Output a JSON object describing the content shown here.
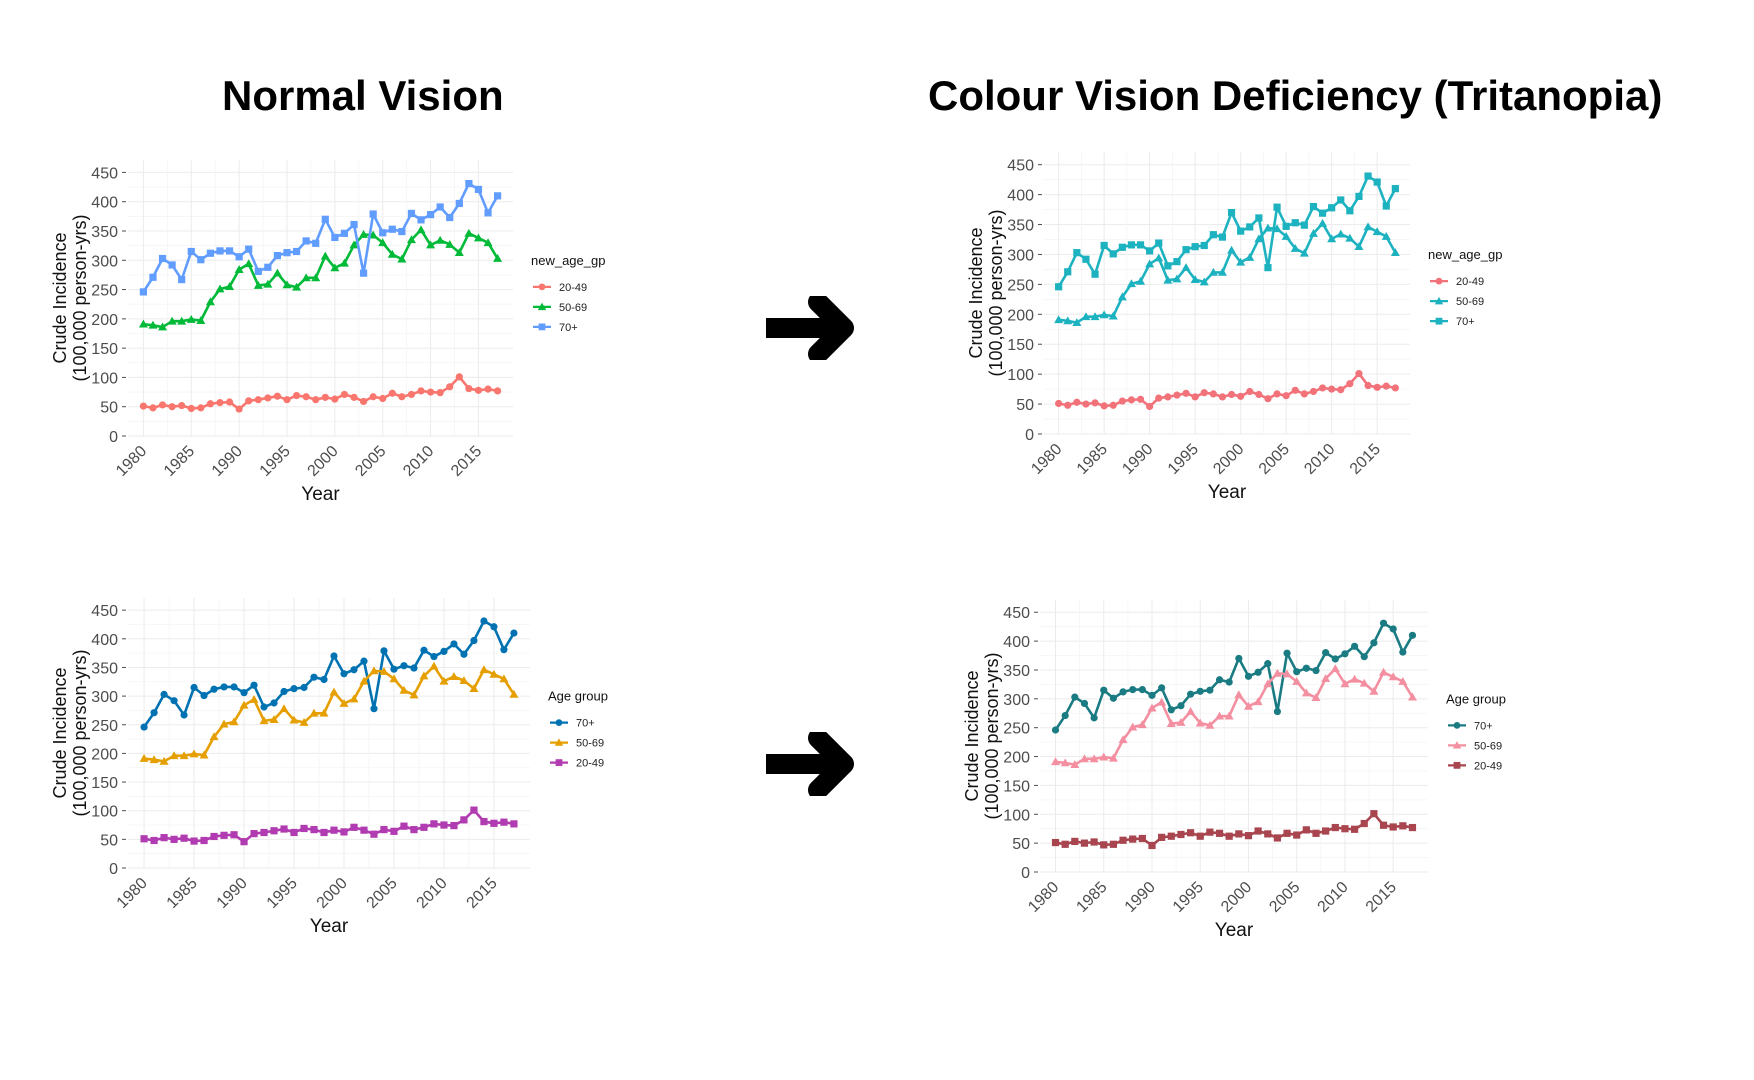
{
  "headings": {
    "left": "Normal Vision",
    "right": "Colour Vision Deficiency (Tritanopia)"
  },
  "chart_data": [
    {
      "type": "line",
      "panel": "top-left",
      "xlabel": "Year",
      "ylabel": [
        "Crude Incidence",
        "(100,000 person-yrs)"
      ],
      "xlim": [
        1980,
        2017
      ],
      "ylim": [
        0,
        450
      ],
      "xticks": [
        1980,
        1985,
        1990,
        1995,
        2000,
        2005,
        2010,
        2015
      ],
      "yticks": [
        0,
        50,
        100,
        150,
        200,
        250,
        300,
        350,
        400,
        450
      ],
      "grid": true,
      "legend_title": "new_age_gp",
      "legend_position": "right",
      "x": [
        1980,
        1981,
        1982,
        1983,
        1984,
        1985,
        1986,
        1987,
        1988,
        1989,
        1990,
        1991,
        1992,
        1993,
        1994,
        1995,
        1996,
        1997,
        1998,
        1999,
        2000,
        2001,
        2002,
        2003,
        2004,
        2005,
        2006,
        2007,
        2008,
        2009,
        2010,
        2011,
        2012,
        2013,
        2014,
        2015,
        2016,
        2017
      ],
      "series": [
        {
          "name": "20-49",
          "color": "#F8766D",
          "marker": "circle",
          "values": [
            51,
            48,
            53,
            50,
            52,
            47,
            48,
            55,
            57,
            58,
            46,
            60,
            62,
            65,
            68,
            62,
            69,
            67,
            62,
            66,
            63,
            71,
            66,
            59,
            67,
            64,
            73,
            67,
            71,
            77,
            75,
            74,
            84,
            101,
            81,
            78,
            80,
            77
          ]
        },
        {
          "name": "50-69",
          "color": "#00BA38",
          "marker": "triangle",
          "values": [
            191,
            189,
            186,
            196,
            196,
            199,
            197,
            229,
            251,
            255,
            284,
            294,
            257,
            259,
            278,
            258,
            254,
            270,
            270,
            307,
            287,
            295,
            326,
            344,
            343,
            330,
            310,
            302,
            335,
            352,
            326,
            334,
            327,
            313,
            346,
            338,
            330,
            303
          ]
        },
        {
          "name": "70+",
          "color": "#619CFF",
          "marker": "square",
          "values": [
            246,
            271,
            303,
            292,
            267,
            315,
            301,
            312,
            316,
            316,
            306,
            319,
            281,
            288,
            308,
            313,
            315,
            333,
            329,
            370,
            339,
            346,
            361,
            278,
            379,
            347,
            353,
            349,
            380,
            369,
            378,
            391,
            373,
            397,
            431,
            421,
            381,
            410
          ]
        }
      ]
    },
    {
      "type": "line",
      "panel": "top-right",
      "xlabel": "Year",
      "ylabel": [
        "Crude Incidence",
        "(100,000 person-yrs)"
      ],
      "xlim": [
        1980,
        2017
      ],
      "ylim": [
        0,
        450
      ],
      "xticks": [
        1980,
        1985,
        1990,
        1995,
        2000,
        2005,
        2010,
        2015
      ],
      "yticks": [
        0,
        50,
        100,
        150,
        200,
        250,
        300,
        350,
        400,
        450
      ],
      "grid": true,
      "legend_title": "new_age_gp",
      "legend_position": "right",
      "x": [
        1980,
        1981,
        1982,
        1983,
        1984,
        1985,
        1986,
        1987,
        1988,
        1989,
        1990,
        1991,
        1992,
        1993,
        1994,
        1995,
        1996,
        1997,
        1998,
        1999,
        2000,
        2001,
        2002,
        2003,
        2004,
        2005,
        2006,
        2007,
        2008,
        2009,
        2010,
        2011,
        2012,
        2013,
        2014,
        2015,
        2016,
        2017
      ],
      "series": [
        {
          "name": "20-49",
          "color": "#F2727A",
          "marker": "circle",
          "values": [
            51,
            48,
            53,
            50,
            52,
            47,
            48,
            55,
            57,
            58,
            46,
            60,
            62,
            65,
            68,
            62,
            69,
            67,
            62,
            66,
            63,
            71,
            66,
            59,
            67,
            64,
            73,
            67,
            71,
            77,
            75,
            74,
            84,
            101,
            81,
            78,
            80,
            77
          ]
        },
        {
          "name": "50-69",
          "color": "#1DB2C0",
          "marker": "triangle",
          "values": [
            191,
            189,
            186,
            196,
            196,
            199,
            197,
            229,
            251,
            255,
            284,
            294,
            257,
            259,
            278,
            258,
            254,
            270,
            270,
            307,
            287,
            295,
            326,
            344,
            343,
            330,
            310,
            302,
            335,
            352,
            326,
            334,
            327,
            313,
            346,
            338,
            330,
            303
          ]
        },
        {
          "name": "70+",
          "color": "#1DB2C0",
          "marker": "square",
          "values": [
            246,
            271,
            303,
            292,
            267,
            315,
            301,
            312,
            316,
            316,
            306,
            319,
            281,
            288,
            308,
            313,
            315,
            333,
            329,
            370,
            339,
            346,
            361,
            278,
            379,
            347,
            353,
            349,
            380,
            369,
            378,
            391,
            373,
            397,
            431,
            421,
            381,
            410
          ]
        }
      ]
    },
    {
      "type": "line",
      "panel": "bottom-left",
      "xlabel": "Year",
      "ylabel": [
        "Crude Incidence",
        "(100,000 person-yrs)"
      ],
      "xlim": [
        1980,
        2017
      ],
      "ylim": [
        0,
        450
      ],
      "xticks": [
        1980,
        1985,
        1990,
        1995,
        2000,
        2005,
        2010,
        2015
      ],
      "yticks": [
        0,
        50,
        100,
        150,
        200,
        250,
        300,
        350,
        400,
        450
      ],
      "grid": true,
      "legend_title": "Age group",
      "legend_position": "right",
      "x": [
        1980,
        1981,
        1982,
        1983,
        1984,
        1985,
        1986,
        1987,
        1988,
        1989,
        1990,
        1991,
        1992,
        1993,
        1994,
        1995,
        1996,
        1997,
        1998,
        1999,
        2000,
        2001,
        2002,
        2003,
        2004,
        2005,
        2006,
        2007,
        2008,
        2009,
        2010,
        2011,
        2012,
        2013,
        2014,
        2015,
        2016,
        2017
      ],
      "series": [
        {
          "name": "70+",
          "color": "#0072B2",
          "marker": "circle",
          "values": [
            246,
            271,
            303,
            292,
            267,
            315,
            301,
            312,
            316,
            316,
            306,
            319,
            281,
            288,
            308,
            313,
            315,
            333,
            329,
            370,
            339,
            346,
            361,
            278,
            379,
            347,
            353,
            349,
            380,
            369,
            378,
            391,
            373,
            397,
            431,
            421,
            381,
            410
          ]
        },
        {
          "name": "50-69",
          "color": "#E69F00",
          "marker": "triangle",
          "values": [
            191,
            189,
            186,
            196,
            196,
            199,
            197,
            229,
            251,
            255,
            284,
            294,
            257,
            259,
            278,
            258,
            254,
            270,
            270,
            307,
            287,
            295,
            326,
            344,
            343,
            330,
            310,
            302,
            335,
            352,
            326,
            334,
            327,
            313,
            346,
            338,
            330,
            303
          ]
        },
        {
          "name": "20-49",
          "color": "#B13BB0",
          "marker": "square",
          "values": [
            51,
            48,
            53,
            50,
            52,
            47,
            48,
            55,
            57,
            58,
            46,
            60,
            62,
            65,
            68,
            62,
            69,
            67,
            62,
            66,
            63,
            71,
            66,
            59,
            67,
            64,
            73,
            67,
            71,
            77,
            75,
            74,
            84,
            101,
            81,
            78,
            80,
            77
          ]
        }
      ]
    },
    {
      "type": "line",
      "panel": "bottom-right",
      "xlabel": "Year",
      "ylabel": [
        "Crude Incidence",
        "(100,000 person-yrs)"
      ],
      "xlim": [
        1980,
        2017
      ],
      "ylim": [
        0,
        450
      ],
      "xticks": [
        1980,
        1985,
        1990,
        1995,
        2000,
        2005,
        2010,
        2015
      ],
      "yticks": [
        0,
        50,
        100,
        150,
        200,
        250,
        300,
        350,
        400,
        450
      ],
      "grid": true,
      "legend_title": "Age group",
      "legend_position": "right",
      "x": [
        1980,
        1981,
        1982,
        1983,
        1984,
        1985,
        1986,
        1987,
        1988,
        1989,
        1990,
        1991,
        1992,
        1993,
        1994,
        1995,
        1996,
        1997,
        1998,
        1999,
        2000,
        2001,
        2002,
        2003,
        2004,
        2005,
        2006,
        2007,
        2008,
        2009,
        2010,
        2011,
        2012,
        2013,
        2014,
        2015,
        2016,
        2017
      ],
      "series": [
        {
          "name": "70+",
          "color": "#1A7B82",
          "marker": "circle",
          "values": [
            246,
            271,
            303,
            292,
            267,
            315,
            301,
            312,
            316,
            316,
            306,
            319,
            281,
            288,
            308,
            313,
            315,
            333,
            329,
            370,
            339,
            346,
            361,
            278,
            379,
            347,
            353,
            349,
            380,
            369,
            378,
            391,
            373,
            397,
            431,
            421,
            381,
            410
          ]
        },
        {
          "name": "50-69",
          "color": "#F38FA0",
          "marker": "triangle",
          "values": [
            191,
            189,
            186,
            196,
            196,
            199,
            197,
            229,
            251,
            255,
            284,
            294,
            257,
            259,
            278,
            258,
            254,
            270,
            270,
            307,
            287,
            295,
            326,
            344,
            343,
            330,
            310,
            302,
            335,
            352,
            326,
            334,
            327,
            313,
            346,
            338,
            330,
            303
          ]
        },
        {
          "name": "20-49",
          "color": "#A8454F",
          "marker": "square",
          "values": [
            51,
            48,
            53,
            50,
            52,
            47,
            48,
            55,
            57,
            58,
            46,
            60,
            62,
            65,
            68,
            62,
            69,
            67,
            62,
            66,
            63,
            71,
            66,
            59,
            67,
            64,
            73,
            67,
            71,
            77,
            75,
            74,
            84,
            101,
            81,
            78,
            80,
            77
          ]
        }
      ]
    }
  ]
}
